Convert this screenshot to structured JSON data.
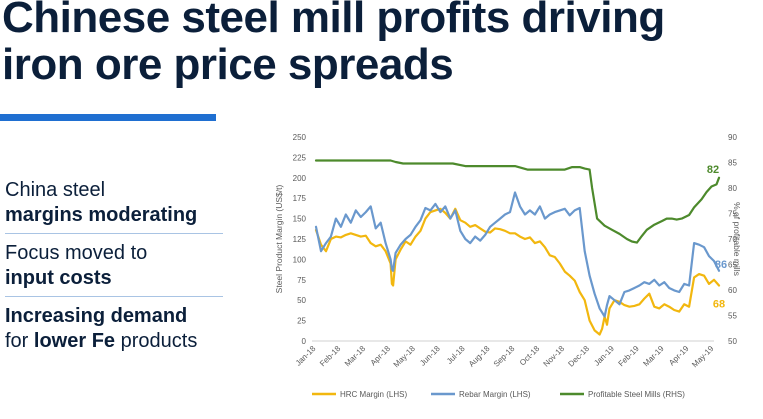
{
  "title_line1": "Chinese steel mill profits driving",
  "title_line2": "iron ore price spreads",
  "colors": {
    "accent": "#1f6fd1",
    "hrc": "#f2b70f",
    "rebar": "#6a98cd",
    "mills": "#4d8a2c",
    "navy": "#0b1f3a"
  },
  "bullets": {
    "b1_line1": "China steel",
    "b1_line2": "margins moderating",
    "b2_line1": "Focus moved to",
    "b2_line2": "input costs",
    "b3_line1": "Increasing demand",
    "b3_pre": "for ",
    "b3_bold": "lower Fe",
    "b3_post": " products"
  },
  "chart_data": {
    "type": "line",
    "ylabel": "Steel Product Margin (US$/t)",
    "y2label": "% of profitable mills",
    "ylim": [
      0,
      250
    ],
    "y2lim": [
      50,
      90
    ],
    "yticks": [
      "0",
      "25",
      "50",
      "75",
      "100",
      "125",
      "150",
      "175",
      "200",
      "225",
      "250"
    ],
    "y2ticks": [
      "50",
      "55",
      "60",
      "65",
      "70",
      "75",
      "80",
      "85",
      "90"
    ],
    "categories": [
      "Jan-18",
      "Feb-18",
      "Mar-18",
      "Apr-18",
      "May-18",
      "Jun-18",
      "Jul-18",
      "Aug-18",
      "Sep-18",
      "Oct-18",
      "Nov-18",
      "Dec-18",
      "Jan-19",
      "Feb-19",
      "Mar-19",
      "Apr-19",
      "May-19"
    ],
    "grid": false,
    "legend_position": "bottom",
    "series": [
      {
        "name": "HRC Margin (LHS)",
        "axis": "left",
        "x": [
          0,
          0.2,
          0.4,
          0.6,
          0.8,
          1,
          1.2,
          1.4,
          1.6,
          1.8,
          2,
          2.2,
          2.4,
          2.6,
          2.8,
          3,
          3.05,
          3.1,
          3.2,
          3.4,
          3.6,
          3.8,
          4,
          4.2,
          4.4,
          4.6,
          4.8,
          5,
          5.2,
          5.4,
          5.6,
          5.8,
          6,
          6.2,
          6.4,
          6.6,
          6.8,
          7,
          7.2,
          7.4,
          7.6,
          7.8,
          8,
          8.2,
          8.4,
          8.6,
          8.8,
          9,
          9.2,
          9.4,
          9.6,
          9.8,
          10,
          10.2,
          10.4,
          10.6,
          10.8,
          11,
          11.2,
          11.4,
          11.5,
          11.6,
          11.7,
          11.8,
          12,
          12.2,
          12.4,
          12.6,
          12.8,
          13,
          13.2,
          13.4,
          13.6,
          13.8,
          14,
          14.2,
          14.4,
          14.6,
          14.8,
          15,
          15.2,
          15.4,
          15.6,
          15.8,
          16,
          16.2
        ],
        "y": [
          136,
          118,
          110,
          125,
          128,
          127,
          130,
          132,
          130,
          128,
          129,
          120,
          116,
          118,
          110,
          95,
          70,
          68,
          100,
          112,
          122,
          118,
          128,
          135,
          150,
          158,
          160,
          162,
          157,
          150,
          162,
          148,
          145,
          140,
          142,
          138,
          134,
          133,
          138,
          137,
          135,
          132,
          132,
          128,
          125,
          127,
          120,
          122,
          115,
          105,
          103,
          95,
          85,
          80,
          74,
          60,
          50,
          25,
          13,
          8,
          15,
          30,
          20,
          40,
          50,
          48,
          44,
          42,
          43,
          45,
          52,
          58,
          42,
          40,
          45,
          42,
          38,
          36,
          45,
          42,
          78,
          82,
          80,
          70,
          75,
          68
        ]
      },
      {
        "name": "Rebar Margin (LHS)",
        "axis": "left",
        "x": [
          0,
          0.2,
          0.4,
          0.6,
          0.8,
          1,
          1.2,
          1.4,
          1.6,
          1.8,
          2,
          2.2,
          2.4,
          2.6,
          2.8,
          3,
          3.05,
          3.1,
          3.2,
          3.4,
          3.6,
          3.8,
          4,
          4.2,
          4.4,
          4.6,
          4.8,
          5,
          5.2,
          5.4,
          5.6,
          5.8,
          6,
          6.2,
          6.4,
          6.6,
          6.8,
          7,
          7.2,
          7.4,
          7.6,
          7.8,
          8,
          8.2,
          8.4,
          8.6,
          8.8,
          9,
          9.2,
          9.4,
          9.6,
          9.8,
          10,
          10.2,
          10.4,
          10.6,
          10.8,
          11,
          11.2,
          11.4,
          11.5,
          11.6,
          11.7,
          11.8,
          12,
          12.2,
          12.4,
          12.6,
          12.8,
          13,
          13.2,
          13.4,
          13.6,
          13.8,
          14,
          14.2,
          14.4,
          14.6,
          14.8,
          15,
          15.2,
          15.4,
          15.6,
          15.8,
          16,
          16.2
        ],
        "y": [
          140,
          110,
          120,
          128,
          150,
          140,
          155,
          145,
          160,
          152,
          158,
          165,
          138,
          145,
          120,
          100,
          88,
          86,
          108,
          118,
          125,
          130,
          140,
          148,
          163,
          160,
          168,
          158,
          165,
          150,
          160,
          135,
          125,
          120,
          128,
          123,
          130,
          140,
          145,
          150,
          155,
          158,
          182,
          165,
          155,
          160,
          155,
          165,
          150,
          155,
          158,
          160,
          162,
          154,
          160,
          163,
          110,
          80,
          58,
          40,
          35,
          30,
          44,
          55,
          50,
          45,
          60,
          62,
          65,
          68,
          72,
          70,
          75,
          68,
          72,
          65,
          62,
          60,
          70,
          68,
          120,
          118,
          115,
          104,
          98,
          86
        ]
      },
      {
        "name": "Profitable Steel Mills (RHS)",
        "axis": "right",
        "x": [
          0,
          0.5,
          1,
          1.5,
          2,
          2.5,
          3,
          3.2,
          3.5,
          4,
          4.5,
          5,
          5.5,
          6,
          6.5,
          7,
          7.5,
          8,
          8.5,
          8.7,
          9,
          9.5,
          10,
          10.3,
          10.6,
          10.8,
          11,
          11.1,
          11.3,
          11.6,
          11.9,
          12.2,
          12.5,
          12.7,
          12.9,
          13.1,
          13.3,
          13.6,
          13.9,
          14.1,
          14.3,
          14.5,
          14.7,
          15,
          15.2,
          15.5,
          15.7,
          15.9,
          16.1,
          16.2
        ],
        "y": [
          85.4,
          85.4,
          85.4,
          85.4,
          85.4,
          85.4,
          85.4,
          85.1,
          84.8,
          84.8,
          84.8,
          84.8,
          84.8,
          84.3,
          84.3,
          84.3,
          84.3,
          84.3,
          83.6,
          83.6,
          83.6,
          83.6,
          83.6,
          84.1,
          84.1,
          83.8,
          83.6,
          80,
          74,
          72.6,
          71.8,
          71.0,
          70.0,
          69.5,
          69.3,
          70.6,
          71.8,
          72.8,
          73.5,
          74.0,
          74.0,
          73.8,
          74.0,
          74.7,
          76.2,
          77.8,
          79.2,
          80.3,
          80.7,
          82.0
        ]
      }
    ],
    "end_labels": {
      "mills": "82",
      "rebar": "86",
      "hrc": "68"
    }
  }
}
